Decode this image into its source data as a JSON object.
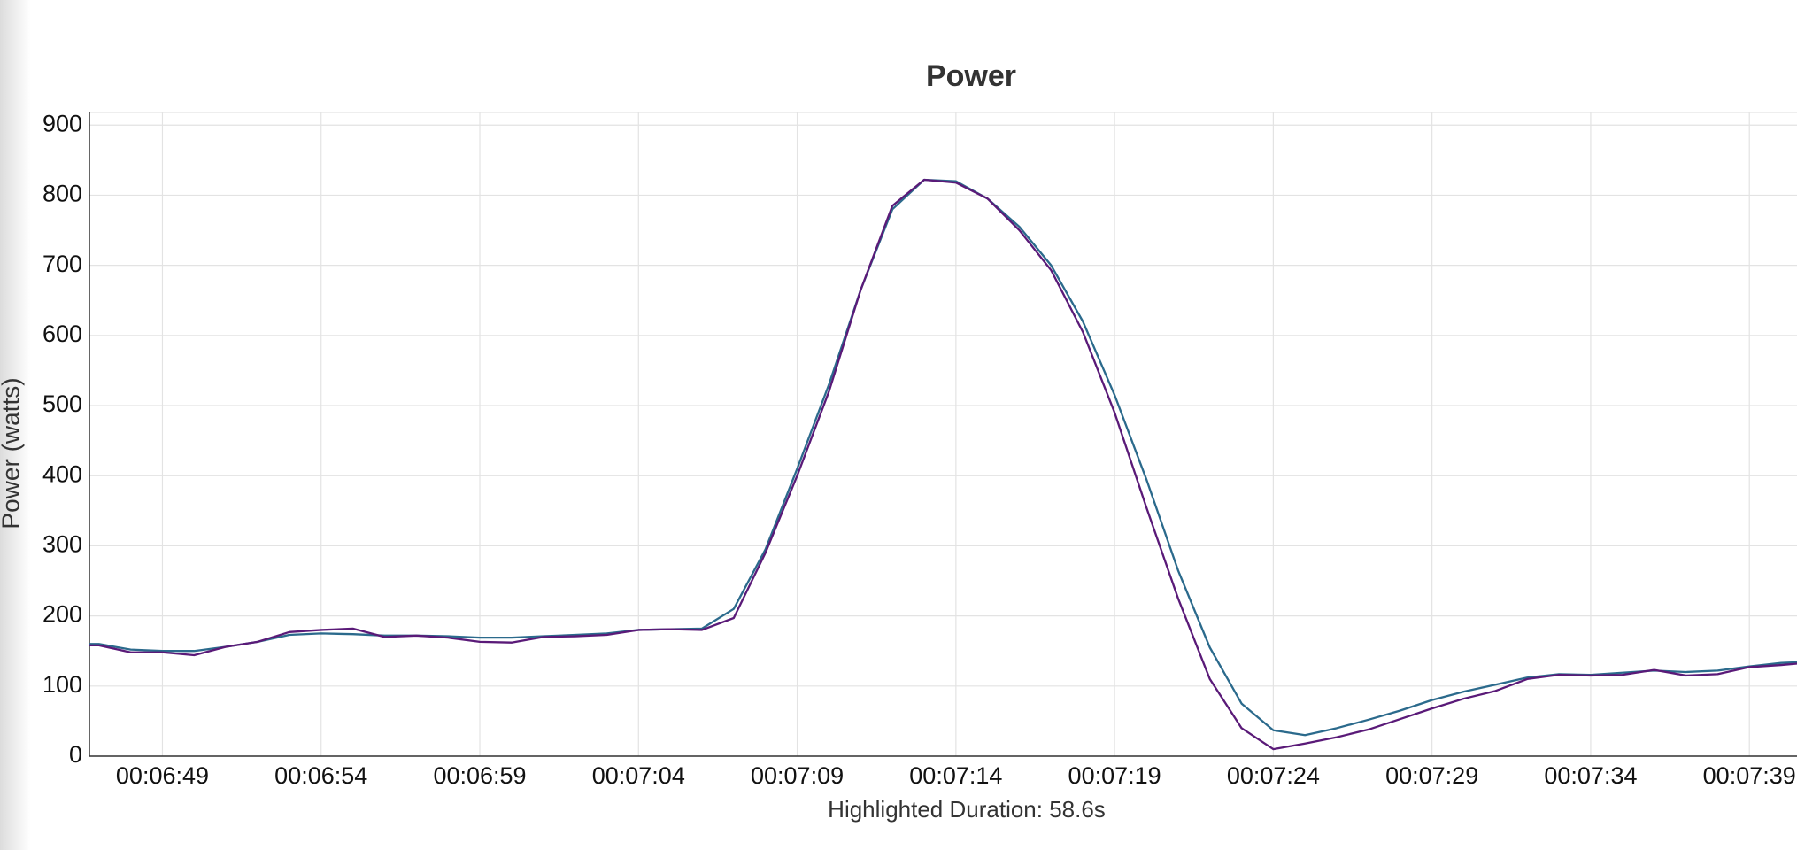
{
  "chart_data": {
    "type": "line",
    "title": "Power",
    "y_label": "Power (watts)",
    "footer": "Highlighted Duration: 58.6s",
    "x": [
      406.7,
      407,
      408,
      409,
      410,
      411,
      412,
      413,
      414,
      415,
      416,
      417,
      418,
      419,
      420,
      421,
      422,
      423,
      424,
      425,
      426,
      427,
      428,
      429,
      430,
      431,
      432,
      433,
      434,
      435,
      436,
      437,
      438,
      439,
      440,
      441,
      442,
      443,
      444,
      445,
      446,
      447,
      448,
      449,
      450,
      451,
      452,
      453,
      454,
      455,
      456,
      457,
      458,
      459,
      460,
      460.5
    ],
    "series": [
      {
        "color": "#2b6a8c",
        "values": [
          160,
          160,
          152,
          150,
          150,
          156,
          163,
          173,
          175,
          174,
          172,
          172,
          171,
          169,
          169,
          171,
          173,
          175,
          180,
          181,
          182,
          210,
          295,
          410,
          530,
          665,
          780,
          822,
          820,
          795,
          755,
          700,
          620,
          515,
          395,
          265,
          155,
          75,
          37,
          30,
          40,
          52,
          65,
          80,
          92,
          102,
          112,
          117,
          116,
          119,
          122,
          120,
          122,
          128,
          133,
          134
        ]
      },
      {
        "color": "#5a1a78",
        "values": [
          158,
          158,
          148,
          148,
          144,
          156,
          163,
          177,
          180,
          182,
          170,
          172,
          169,
          163,
          162,
          170,
          171,
          173,
          180,
          181,
          180,
          197,
          290,
          400,
          520,
          665,
          785,
          822,
          818,
          795,
          750,
          693,
          605,
          490,
          355,
          225,
          110,
          40,
          10,
          18,
          27,
          38,
          53,
          68,
          82,
          93,
          110,
          116,
          115,
          116,
          123,
          115,
          117,
          127,
          130,
          132
        ]
      }
    ],
    "xlim": [
      406.7,
      460.5
    ],
    "xticks": [
      {
        "value": 409,
        "label": "00:06:49"
      },
      {
        "value": 414,
        "label": "00:06:54"
      },
      {
        "value": 419,
        "label": "00:06:59"
      },
      {
        "value": 424,
        "label": "00:07:04"
      },
      {
        "value": 429,
        "label": "00:07:09"
      },
      {
        "value": 434,
        "label": "00:07:14"
      },
      {
        "value": 439,
        "label": "00:07:19"
      },
      {
        "value": 444,
        "label": "00:07:24"
      },
      {
        "value": 449,
        "label": "00:07:29"
      },
      {
        "value": 454,
        "label": "00:07:34"
      },
      {
        "value": 459,
        "label": "00:07:39"
      }
    ],
    "ylim": [
      0,
      918
    ],
    "yticks": [
      0,
      100,
      200,
      300,
      400,
      500,
      600,
      700,
      800,
      900
    ],
    "grid": true
  }
}
